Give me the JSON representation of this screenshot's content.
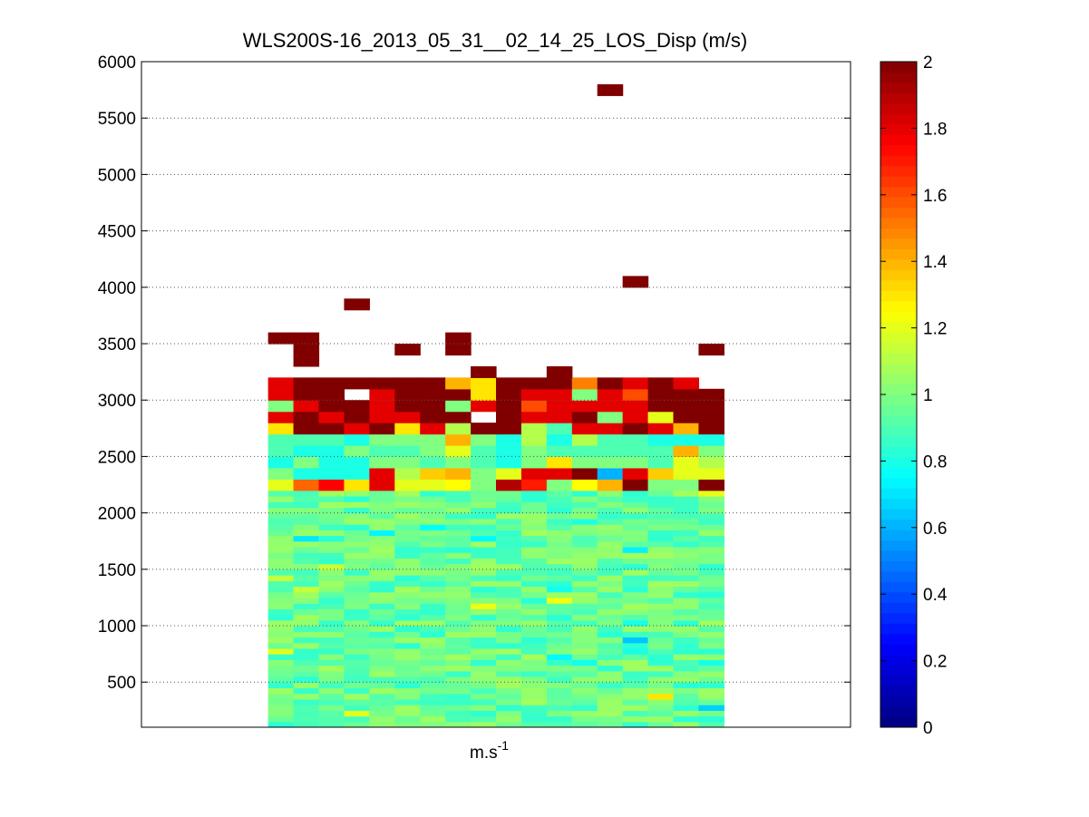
{
  "chart_data": {
    "type": "heatmap",
    "title": "WLS200S-16_2013_05_31__02_14_25_LOS_Disp (m/s)",
    "xlabel": "m.s",
    "xlabel_superscript": "-1",
    "ylabel": "",
    "ylim": [
      100,
      6000
    ],
    "y_ticks": [
      500,
      1000,
      1500,
      2000,
      2500,
      3000,
      3500,
      4000,
      4500,
      5000,
      5500,
      6000
    ],
    "grid": "horizontal dotted at y ticks",
    "colormap": "jet",
    "colorbar": {
      "min": 0,
      "max": 2,
      "ticks": [
        "0",
        "0.2",
        "0.4",
        "0.6",
        "0.8",
        "1",
        "1.2",
        "1.4",
        "1.6",
        "1.8",
        "2"
      ]
    },
    "columns": 18,
    "data_column_range": [
      5,
      22
    ],
    "total_column_slots": 28,
    "row_height_m": 50,
    "low_region": {
      "range_m": [
        100,
        2200
      ],
      "typical_value": 0.95,
      "spread": 0.12
    },
    "rows_from_2200": [
      {
        "y": 2250,
        "v": [
          1.2,
          1.55,
          1.75,
          1.3,
          1.8,
          1.2,
          1.2,
          1.25,
          1.0,
          1.9,
          1.7,
          1.0,
          1.25,
          1.4,
          2.0,
          1.0,
          1.0,
          2.0
        ]
      },
      {
        "y": 2350,
        "v": [
          1.0,
          0.8,
          0.8,
          0.8,
          1.8,
          1.1,
          1.35,
          1.4,
          1.0,
          1.2,
          1.8,
          1.8,
          2.0,
          0.6,
          1.8,
          1.35,
          1.2,
          1.2
        ]
      },
      {
        "y": 2450,
        "v": [
          0.8,
          1.0,
          0.8,
          0.8,
          1.0,
          1.0,
          0.9,
          1.0,
          0.9,
          0.8,
          1.0,
          1.3,
          1.0,
          1.0,
          1.0,
          0.9,
          1.2,
          1.1
        ]
      },
      {
        "y": 2550,
        "v": [
          0.9,
          0.8,
          0.8,
          1.0,
          0.9,
          0.9,
          1.0,
          1.2,
          0.9,
          0.8,
          1.0,
          0.9,
          0.9,
          0.9,
          0.9,
          0.9,
          1.4,
          1.0
        ]
      },
      {
        "y": 2650,
        "v": [
          0.9,
          0.9,
          0.9,
          0.8,
          1.0,
          1.0,
          1.0,
          1.4,
          1.0,
          0.8,
          1.1,
          0.8,
          1.1,
          0.9,
          0.9,
          0.8,
          0.8,
          0.8
        ]
      },
      {
        "y": 2750,
        "v": [
          1.3,
          2.0,
          2.0,
          1.8,
          2.0,
          1.3,
          1.8,
          1.1,
          2.0,
          2.0,
          1.1,
          0.9,
          1.8,
          1.8,
          2.0,
          1.8,
          1.4,
          2.0
        ]
      },
      {
        "y": 2850,
        "v": [
          1.8,
          2.0,
          1.8,
          2.0,
          1.8,
          1.8,
          2.0,
          2.0,
          null,
          2.0,
          1.8,
          1.8,
          2.0,
          1.0,
          1.8,
          1.2,
          2.0,
          2.0
        ]
      },
      {
        "y": 2950,
        "v": [
          1.0,
          1.8,
          2.0,
          2.0,
          1.8,
          2.0,
          2.0,
          1.0,
          1.8,
          2.0,
          1.6,
          1.8,
          1.8,
          1.8,
          1.8,
          2.0,
          2.0,
          2.0
        ]
      },
      {
        "y": 3050,
        "v": [
          1.8,
          2.0,
          2.0,
          null,
          1.8,
          2.0,
          2.0,
          2.0,
          1.3,
          2.0,
          1.8,
          1.8,
          1.0,
          1.8,
          1.6,
          2.0,
          2.0,
          2.0
        ]
      },
      {
        "y": 3150,
        "v": [
          1.8,
          2.0,
          2.0,
          2.0,
          2.0,
          2.0,
          2.0,
          1.4,
          1.3,
          2.0,
          2.0,
          2.0,
          1.5,
          2.0,
          1.8,
          2.0,
          1.8,
          null
        ]
      }
    ],
    "isolated_cells": [
      {
        "col": 6,
        "y": 3350,
        "v": 2.0
      },
      {
        "col": 6,
        "y": 3450,
        "v": 2.0
      },
      {
        "col": 5,
        "y": 3550,
        "v": 2.0
      },
      {
        "col": 6,
        "y": 3550,
        "v": 2.0
      },
      {
        "col": 8,
        "y": 3850,
        "v": 2.0
      },
      {
        "col": 10,
        "y": 3450,
        "v": 2.0
      },
      {
        "col": 12,
        "y": 3450,
        "v": 2.0
      },
      {
        "col": 12,
        "y": 3550,
        "v": 2.0
      },
      {
        "col": 13,
        "y": 3250,
        "v": 2.0
      },
      {
        "col": 16,
        "y": 3250,
        "v": 2.0
      },
      {
        "col": 18,
        "y": 5750,
        "v": 2.0
      },
      {
        "col": 19,
        "y": 4050,
        "v": 2.0
      },
      {
        "col": 22,
        "y": 3450,
        "v": 2.0
      }
    ]
  }
}
